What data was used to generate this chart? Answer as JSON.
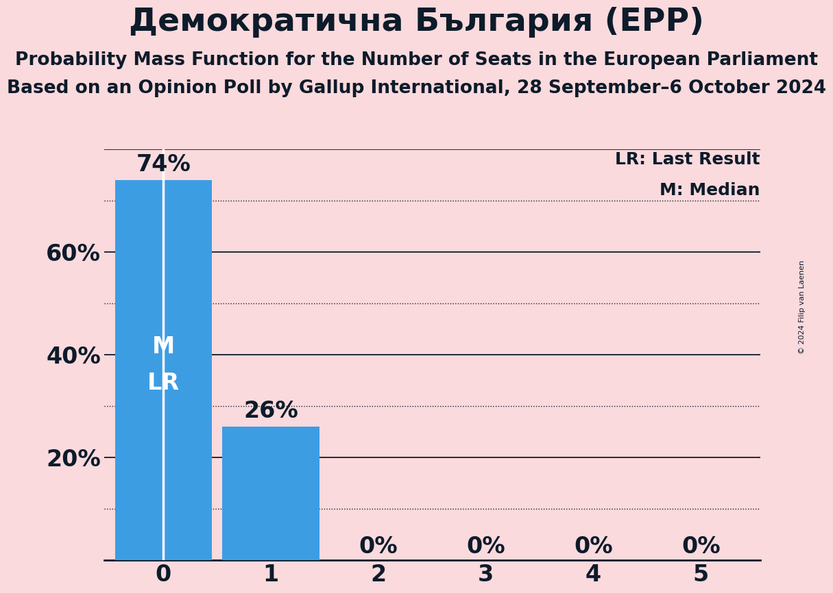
{
  "title": "Демократична България (EPP)",
  "subtitle1": "Probability Mass Function for the Number of Seats in the European Parliament",
  "subtitle2": "Based on an Opinion Poll by Gallup International, 28 September–6 October 2024",
  "copyright": "© 2024 Filip van Laenen",
  "categories": [
    0,
    1,
    2,
    3,
    4,
    5
  ],
  "values": [
    0.74,
    0.26,
    0.0,
    0.0,
    0.0,
    0.0
  ],
  "bar_color": "#3d9de3",
  "background_color": "#FADADD",
  "title_color": "#0d1b2a",
  "bar_label_color_outside": "#0d1b2a",
  "ylim": [
    0,
    0.8
  ],
  "ytick_positions": [
    0.2,
    0.4,
    0.6
  ],
  "ytick_labels": [
    "20%",
    "40%",
    "60%"
  ],
  "solid_gridlines": [
    0.2,
    0.4,
    0.6,
    0.8
  ],
  "dotted_gridlines": [
    0.1,
    0.3,
    0.5,
    0.7
  ],
  "legend_lr": "LR: Last Result",
  "legend_m": "M: Median",
  "median_seat": 0,
  "lr_seat": 0,
  "title_fontsize": 34,
  "subtitle_fontsize": 19,
  "axis_tick_fontsize": 24,
  "bar_label_fontsize": 24,
  "inside_label_fontsize": 24,
  "legend_fontsize": 18
}
